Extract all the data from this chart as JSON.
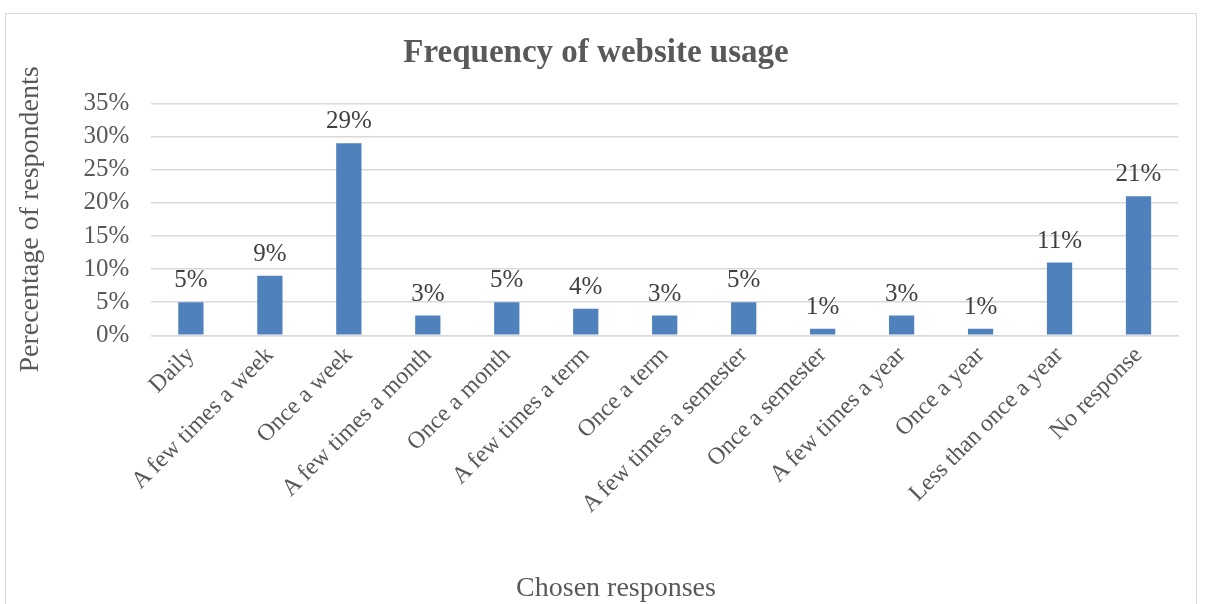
{
  "chart_data": {
    "type": "bar",
    "title": "Frequency of website usage",
    "xlabel": "Chosen responses",
    "ylabel": "Perecentage of respondents",
    "categories": [
      "Daily",
      "A few times a week",
      "Once a week",
      "A few times a month",
      "Once a month",
      "A few times a term",
      "Once a term",
      "A few times a semester",
      "Once a semester",
      "A few times a year",
      "Once a year",
      "Less than once a year",
      "No response"
    ],
    "values": [
      5,
      9,
      29,
      3,
      5,
      4,
      3,
      5,
      1,
      3,
      1,
      11,
      21
    ],
    "value_labels": [
      "5%",
      "9%",
      "29%",
      "3%",
      "5%",
      "4%",
      "3%",
      "5%",
      "1%",
      "3%",
      "1%",
      "11%",
      "21%"
    ],
    "color": "#4f81bd",
    "ylim": [
      0,
      35
    ],
    "yticks": [
      {
        "value": 0,
        "label": "0%"
      },
      {
        "value": 5,
        "label": "5%"
      },
      {
        "value": 10,
        "label": "10%"
      },
      {
        "value": 15,
        "label": "15%"
      },
      {
        "value": 20,
        "label": "20%"
      },
      {
        "value": 25,
        "label": "25%"
      },
      {
        "value": 30,
        "label": "30%"
      },
      {
        "value": 35,
        "label": "35%"
      }
    ],
    "grid": "y"
  }
}
